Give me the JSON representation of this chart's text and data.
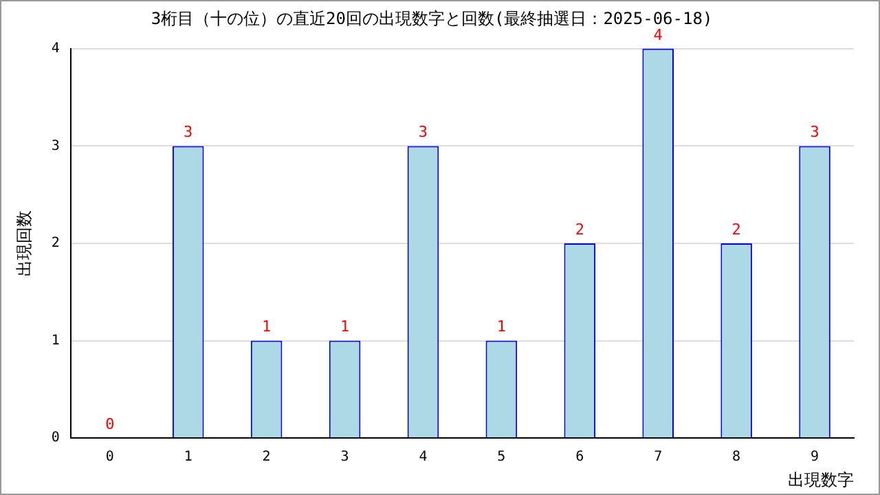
{
  "chart_data": {
    "type": "bar",
    "title": "3桁目（十の位）の直近20回の出現数字と回数(最終抽選日：2025-06-18)",
    "xlabel": "出現数字",
    "ylabel": "出現回数",
    "categories": [
      "0",
      "1",
      "2",
      "3",
      "4",
      "5",
      "6",
      "7",
      "8",
      "9"
    ],
    "values": [
      0,
      3,
      1,
      1,
      3,
      1,
      2,
      4,
      2,
      3
    ],
    "color": "#add8e6",
    "ylim": [
      0,
      4
    ],
    "yticks": [
      0,
      1,
      2,
      3,
      4
    ],
    "grid": "y",
    "legend": false,
    "data_labels": true
  }
}
